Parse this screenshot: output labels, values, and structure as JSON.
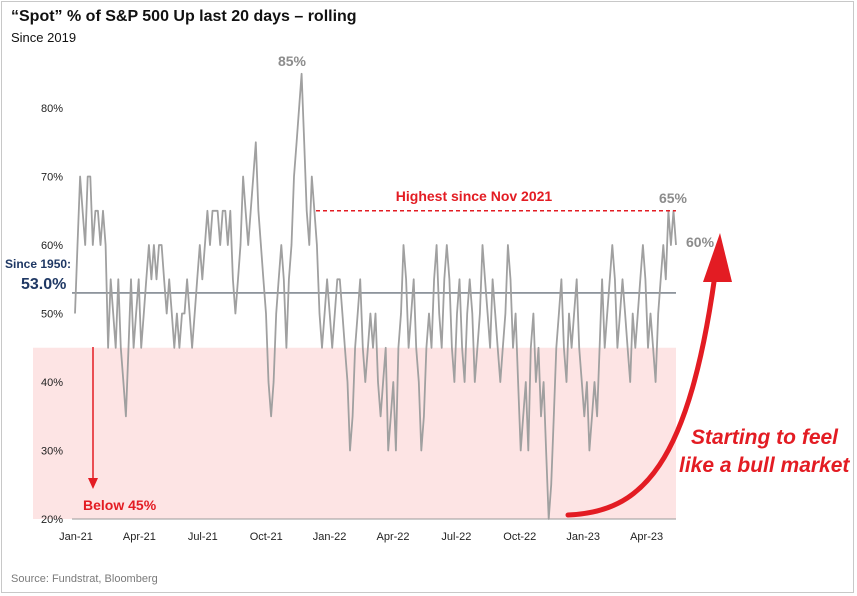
{
  "title": "“Spot” % of S&P 500 Up last 20 days – rolling",
  "subtitle": "Since 2019",
  "source": "Source: Fundstrat, Bloomberg",
  "colors": {
    "line": "#a0a0a0",
    "zone": "#fde4e4",
    "accent_red": "#e31c23",
    "avg_line": "#4a5560",
    "avg_text": "#1f3864",
    "peak_text": "#8c8c8c"
  },
  "annotations": {
    "peak": "85%",
    "recent_high": "65%",
    "latest": "60%",
    "highest_since": "Highest since Nov 2021",
    "since_1950_label": "Since 1950:",
    "since_1950_value": "53.0%",
    "below_45": "Below 45%",
    "bull_line1": "Starting to feel",
    "bull_line2": "like a bull market"
  },
  "chart_data": {
    "type": "line",
    "title": "“Spot” % of S&P 500 Up last 20 days – rolling",
    "subtitle": "Since 2019",
    "ylim": [
      20,
      85
    ],
    "y_ticks": [
      "20%",
      "30%",
      "40%",
      "50%",
      "60%",
      "70%",
      "80%"
    ],
    "x_tick_labels": [
      "Jan-21",
      "Apr-21",
      "Jul-21",
      "Oct-21",
      "Jan-22",
      "Apr-22",
      "Jul-22",
      "Oct-22",
      "Jan-23",
      "Apr-23"
    ],
    "reference_line": {
      "label": "Since 1950:",
      "value": 53.0
    },
    "shaded_zone": {
      "label": "Below 45%",
      "from": 20,
      "to": 45
    },
    "series": [
      {
        "values": [
          50,
          60,
          70,
          65,
          60,
          70,
          70,
          60,
          65,
          65,
          60,
          65,
          60,
          45,
          55,
          50,
          45,
          55,
          45,
          40,
          35,
          45,
          55,
          45,
          50,
          55,
          45,
          50,
          55,
          60,
          55,
          60,
          55,
          60,
          60,
          55,
          50,
          55,
          50,
          45,
          50,
          45,
          50,
          50,
          55,
          50,
          45,
          50,
          55,
          60,
          55,
          60,
          65,
          60,
          65,
          65,
          65,
          60,
          65,
          65,
          60,
          65,
          55,
          50,
          55,
          60,
          70,
          65,
          60,
          65,
          70,
          75,
          65,
          60,
          55,
          50,
          40,
          35,
          40,
          50,
          55,
          60,
          55,
          45,
          55,
          60,
          70,
          75,
          80,
          85,
          75,
          65,
          60,
          70,
          65,
          60,
          50,
          45,
          50,
          55,
          50,
          45,
          50,
          55,
          55,
          50,
          45,
          40,
          30,
          35,
          45,
          50,
          55,
          45,
          40,
          45,
          50,
          45,
          50,
          40,
          35,
          40,
          45,
          30,
          35,
          40,
          30,
          45,
          50,
          60,
          55,
          45,
          50,
          55,
          45,
          40,
          30,
          35,
          45,
          50,
          45,
          55,
          60,
          50,
          45,
          55,
          60,
          55,
          45,
          40,
          50,
          55,
          45,
          40,
          50,
          55,
          50,
          40,
          45,
          50,
          60,
          55,
          50,
          45,
          55,
          50,
          45,
          40,
          45,
          50,
          60,
          55,
          45,
          50,
          40,
          30,
          35,
          40,
          30,
          45,
          50,
          40,
          45,
          35,
          40,
          30,
          20,
          25,
          35,
          45,
          50,
          55,
          45,
          40,
          50,
          45,
          50,
          55,
          45,
          40,
          35,
          40,
          30,
          35,
          40,
          35,
          45,
          55,
          45,
          50,
          55,
          60,
          55,
          45,
          50,
          55,
          50,
          45,
          40,
          50,
          45,
          50,
          55,
          60,
          55,
          45,
          50,
          45,
          40,
          50,
          55,
          60,
          55,
          65,
          60,
          65,
          60
        ]
      }
    ]
  }
}
